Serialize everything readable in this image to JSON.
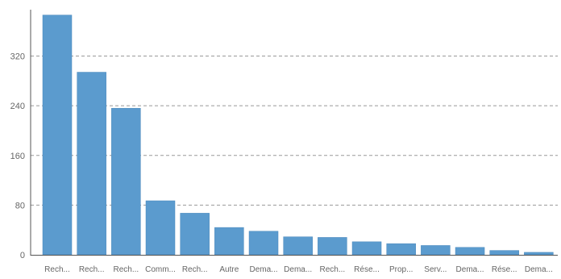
{
  "chart_data": {
    "type": "bar",
    "categories": [
      "Rech...",
      "Rech...",
      "Rech...",
      "Comm...",
      "Rech...",
      "Autre",
      "Dema...",
      "Dema...",
      "Rech...",
      "Rése...",
      "Prop...",
      "Serv...",
      "Dema...",
      "Rése...",
      "Dema..."
    ],
    "values": [
      386,
      294,
      236,
      87,
      67,
      44,
      38,
      29,
      28,
      21,
      18,
      15,
      12,
      7,
      4
    ],
    "ylim": [
      0,
      400
    ],
    "yticks": [
      0,
      80,
      160,
      240,
      320
    ],
    "grid": true,
    "colors": {
      "bar": "#5B9BCE",
      "bar_edge": "#4A88BC",
      "grid": "#999999",
      "axis": "#555555",
      "text": "#666666"
    }
  }
}
